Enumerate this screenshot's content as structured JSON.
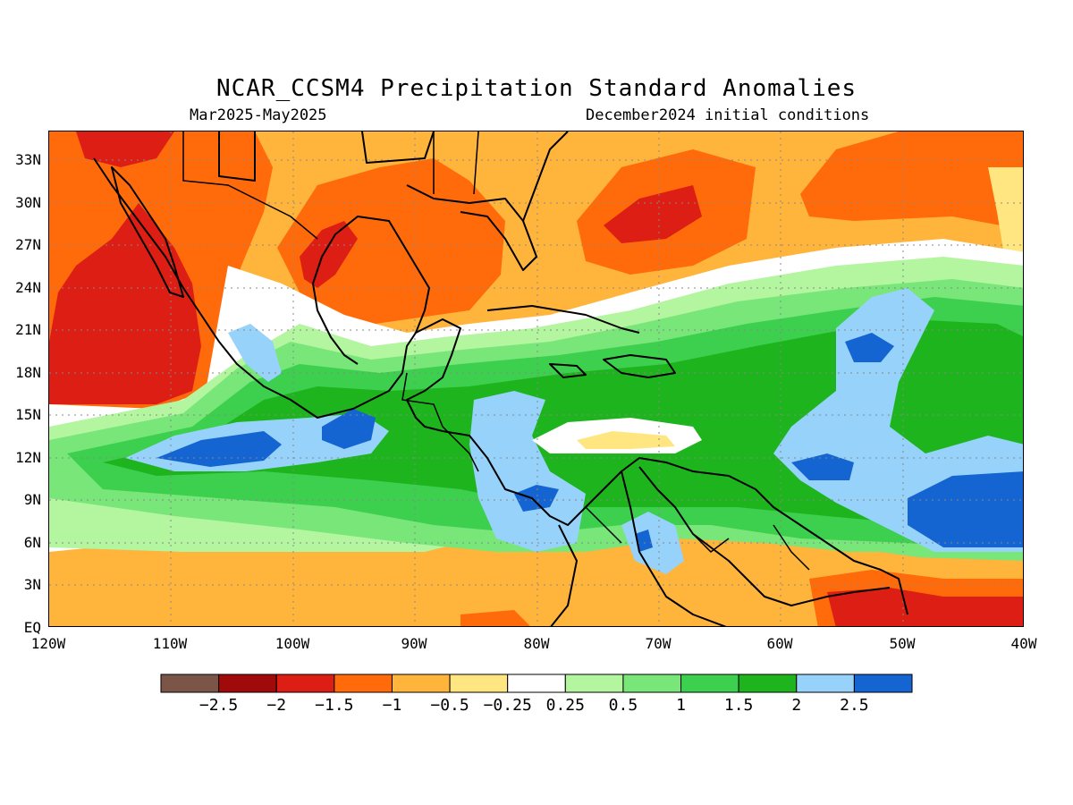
{
  "title": "NCAR_CCSM4 Precipitation Standard Anomalies",
  "subtitle_left": "Mar2025-May2025",
  "subtitle_right": "December2024 initial conditions",
  "map": {
    "lat_labels": [
      "33N",
      "30N",
      "27N",
      "24N",
      "21N",
      "18N",
      "15N",
      "12N",
      "9N",
      "6N",
      "3N",
      "EQ"
    ],
    "lon_labels": [
      "120W",
      "110W",
      "100W",
      "90W",
      "80W",
      "70W",
      "60W",
      "50W",
      "40W"
    ],
    "lat_range": [
      0,
      35
    ],
    "lon_range": [
      -120,
      -40
    ],
    "land_fill": "#ffffff",
    "grid": "dotted"
  },
  "colorbar": {
    "colors": [
      "#7a5548",
      "#a00a0a",
      "#dc1e14",
      "#ff6a0a",
      "#ffb43c",
      "#ffe680",
      "#ffffff",
      "#b4f5a0",
      "#78e678",
      "#3cd04e",
      "#1eb41e",
      "#96d2fa",
      "#1464d2"
    ],
    "labels": [
      "-2.5",
      "-2",
      "-1.5",
      "-1",
      "-0.5",
      "-0.25",
      "0.25",
      "0.5",
      "1",
      "1.5",
      "2",
      "2.5"
    ]
  }
}
